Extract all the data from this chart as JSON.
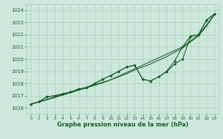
{
  "background_color": "#cce8dc",
  "grid_color": "#aaccbb",
  "line_color": "#1a5c2a",
  "text_color": "#1a5c2a",
  "xlabel": "Graphe pression niveau de la mer (hPa)",
  "ylim": [
    1015.5,
    1024.5
  ],
  "xlim": [
    -0.5,
    23.5
  ],
  "yticks": [
    1016,
    1017,
    1018,
    1019,
    1020,
    1021,
    1022,
    1023,
    1024
  ],
  "xticks": [
    0,
    1,
    2,
    3,
    4,
    5,
    6,
    7,
    8,
    9,
    10,
    11,
    12,
    13,
    14,
    15,
    16,
    17,
    18,
    19,
    20,
    21,
    22,
    23
  ],
  "trend1": [
    1016.3,
    1016.5,
    1016.7,
    1016.9,
    1017.1,
    1017.3,
    1017.5,
    1017.7,
    1017.9,
    1018.1,
    1018.3,
    1018.6,
    1018.9,
    1019.2,
    1019.5,
    1019.8,
    1020.1,
    1020.4,
    1020.7,
    1021.0,
    1021.5,
    1022.0,
    1022.8,
    1023.7
  ],
  "trend2": [
    1016.3,
    1016.48,
    1016.65,
    1016.85,
    1017.05,
    1017.25,
    1017.45,
    1017.65,
    1017.85,
    1018.05,
    1018.3,
    1018.55,
    1018.8,
    1019.1,
    1019.35,
    1019.6,
    1019.9,
    1020.2,
    1020.55,
    1020.9,
    1021.4,
    1021.9,
    1022.7,
    1023.65
  ],
  "zigzag1": [
    1016.3,
    1016.5,
    1016.9,
    1017.0,
    1017.15,
    1017.3,
    1017.55,
    1017.65,
    1018.0,
    1018.35,
    1018.65,
    1019.0,
    1019.35,
    1019.5,
    1018.35,
    1018.2,
    1018.55,
    1018.95,
    1019.6,
    1020.0,
    1021.85,
    1022.0,
    1023.2,
    1023.7
  ],
  "zigzag2": [
    1016.3,
    1016.5,
    1016.9,
    1017.0,
    1017.15,
    1017.3,
    1017.55,
    1017.65,
    1018.0,
    1018.35,
    1018.65,
    1019.0,
    1019.35,
    1019.5,
    1018.35,
    1018.2,
    1018.55,
    1019.0,
    1019.85,
    1021.0,
    1021.9,
    1022.0,
    1023.2,
    1023.7
  ]
}
